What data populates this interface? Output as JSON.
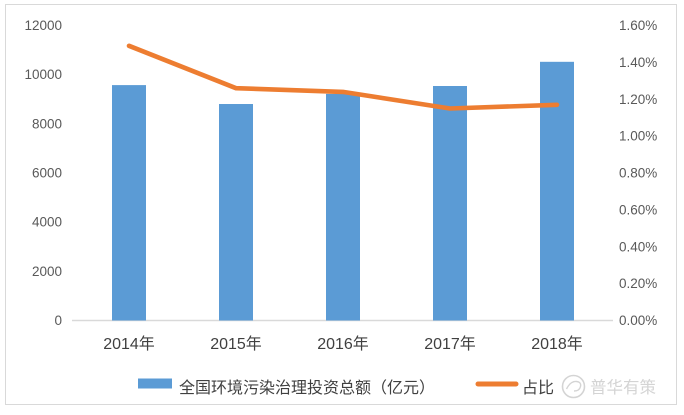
{
  "chart_data": {
    "type": "bar+line",
    "categories": [
      "2014年",
      "2015年",
      "2016年",
      "2017年",
      "2018年"
    ],
    "series": [
      {
        "name": "全国环境污染治理投资总额（亿元）",
        "type": "bar",
        "axis": "left",
        "values": [
          9575.5,
          8806.3,
          9219.8,
          9539.0,
          10522.9
        ],
        "color": "#5B9BD5"
      },
      {
        "name": "占比",
        "type": "line",
        "axis": "right",
        "values": [
          1.49,
          1.26,
          1.24,
          1.15,
          1.17
        ],
        "unit": "%",
        "color": "#ED7D31"
      }
    ],
    "left_axis": {
      "min": 0,
      "max": 12000,
      "step": 2000,
      "tick_labels": [
        "12000",
        "10000",
        "8000",
        "6000",
        "4000",
        "2000",
        "0"
      ]
    },
    "right_axis": {
      "min": 0,
      "max": 1.6,
      "step": 0.2,
      "tick_labels": [
        "1.60%",
        "1.40%",
        "1.20%",
        "1.00%",
        "0.80%",
        "0.60%",
        "0.40%",
        "0.20%",
        "0.00%"
      ]
    },
    "grid": "off",
    "legend_position": "bottom"
  },
  "legend": {
    "bar_label": "全国环境污染治理投资总额（亿元）",
    "line_label": "占比"
  },
  "watermark": {
    "icon": "puhua-logo-icon",
    "text": "普华有策"
  },
  "colors": {
    "bar": "#5B9BD5",
    "line": "#ED7D31",
    "axis_text": "#595959",
    "x_label_text": "#404040",
    "legend_text": "#404040",
    "baseline": "#d9d9d9",
    "frame_border": "#d9d9d9",
    "watermark": "#c6c6c6"
  }
}
